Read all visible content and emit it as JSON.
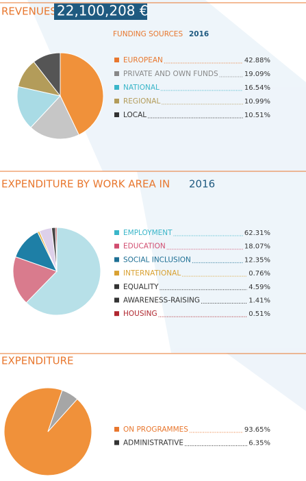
{
  "chart_data": [
    {
      "type": "pie",
      "title": "REVENUES",
      "total": "22,100,208 €",
      "legend_title": "FUNDING SOURCES",
      "legend_year": "2016",
      "categories": [
        "EUROPEAN",
        "PRIVATE AND OWN FUNDS",
        "NATIONAL",
        "REGIONAL",
        "LOCAL"
      ],
      "values": [
        42.88,
        19.09,
        16.54,
        10.99,
        10.51
      ],
      "value_labels": [
        "42.88%",
        "19.09%",
        "16.54%",
        "10.99%",
        "10.51%"
      ],
      "colors": [
        "#f0913a",
        "#c6c6c6",
        "#a9dbe5",
        "#b39c5a",
        "#555555"
      ],
      "text_colors": [
        "#e8772e",
        "#888888",
        "#3ab6c9",
        "#b39c5a",
        "#333333"
      ]
    },
    {
      "type": "pie",
      "title": "EXPENDITURE BY WORK AREA IN",
      "title_year": "2016",
      "categories": [
        "EMPLOYMENT",
        "EDUCATION",
        "SOCIAL INCLUSION",
        "INTERNATIONAL",
        "EQUALITY",
        "AWARENESS-RAISING",
        "HOUSING"
      ],
      "values": [
        62.31,
        18.07,
        12.35,
        0.76,
        4.59,
        1.41,
        0.51
      ],
      "value_labels": [
        "62.31%",
        "18.07%",
        "12.35%",
        "0.76%",
        "4.59%",
        "1.41%",
        "0.51%"
      ],
      "colors": [
        "#b7e0e8",
        "#d97b8d",
        "#1e7fa6",
        "#e6b34a",
        "#ddd0ea",
        "#444444",
        "#b0272f"
      ],
      "text_colors": [
        "#3ab6c9",
        "#d14c6f",
        "#1d6f94",
        "#d9a132",
        "#333333",
        "#333333",
        "#b0272f"
      ]
    },
    {
      "type": "pie",
      "title": "EXPENDITURE",
      "categories": [
        "ON PROGRAMMES",
        "ADMINISTRATIVE"
      ],
      "values": [
        93.65,
        6.35
      ],
      "value_labels": [
        "93.65%",
        "6.35%"
      ],
      "colors": [
        "#f0913a",
        "#a6a6a6"
      ],
      "text_colors": [
        "#e8772e",
        "#333333"
      ]
    }
  ]
}
